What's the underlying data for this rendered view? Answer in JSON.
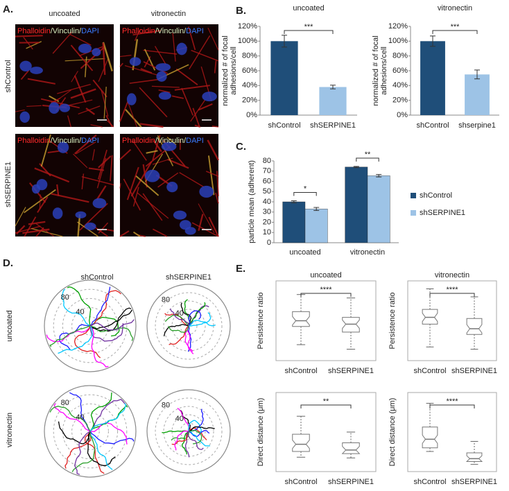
{
  "panels": {
    "a": "A.",
    "b": "B.",
    "c": "C.",
    "d": "D.",
    "e": "E."
  },
  "micrographs": {
    "columns": [
      "uncoated",
      "vitronectin"
    ],
    "rows": [
      "shControl",
      "shSERPINE1"
    ],
    "stain": [
      "Phalloidin",
      "/Vinculin/",
      "DAPI"
    ]
  },
  "rose": {
    "columns": [
      "shControl",
      "shSERPINE1"
    ],
    "rows": [
      "uncoated",
      "vitronectin"
    ],
    "rings": [
      "80",
      "40"
    ]
  },
  "chart_data": [
    {
      "type": "bar",
      "title": "uncoated",
      "y_label": [
        "normalized # of focal",
        "adhesions/cell"
      ],
      "categories": [
        "shControl",
        "shSERPINE1"
      ],
      "values": [
        100,
        38
      ],
      "errors": [
        8,
        2.5
      ],
      "colors": [
        "#1f4e79",
        "#9dc3e6"
      ],
      "ylim": [
        0,
        120
      ],
      "yticks": [
        {
          "value": 0,
          "label": "0%"
        },
        {
          "value": 20,
          "label": "20%"
        },
        {
          "value": 40,
          "label": "40%"
        },
        {
          "value": 60,
          "label": "60%"
        },
        {
          "value": 80,
          "label": "80%"
        },
        {
          "value": 100,
          "label": "100%"
        },
        {
          "value": 120,
          "label": "120%"
        }
      ],
      "annotation": "***"
    },
    {
      "type": "bar",
      "title": "vitronectin",
      "y_label": [
        "normalized # of focal",
        "adhesions/cell"
      ],
      "categories": [
        "shControl",
        "shserpine1"
      ],
      "values": [
        100,
        55
      ],
      "errors": [
        7,
        6
      ],
      "colors": [
        "#1f4e79",
        "#9dc3e6"
      ],
      "ylim": [
        0,
        120
      ],
      "yticks": [
        {
          "value": 0,
          "label": "0%"
        },
        {
          "value": 20,
          "label": "20%"
        },
        {
          "value": 40,
          "label": "40%"
        },
        {
          "value": 60,
          "label": "60%"
        },
        {
          "value": 80,
          "label": "80%"
        },
        {
          "value": 100,
          "label": "100%"
        },
        {
          "value": 120,
          "label": "120%"
        }
      ],
      "annotation": "***"
    },
    {
      "type": "grouped_bar",
      "y_label": "particle mean (adherent)",
      "categories": [
        "uncoated",
        "vitronectin"
      ],
      "series": [
        {
          "name": "shControl",
          "color": "#1f4e79",
          "values": [
            40,
            74
          ],
          "errors": [
            1,
            0.6
          ]
        },
        {
          "name": "shSERPINE1",
          "color": "#9dc3e6",
          "values": [
            33,
            65.5
          ],
          "errors": [
            1.5,
            1.2
          ]
        }
      ],
      "ylim": [
        0,
        80
      ],
      "yticks": [
        0,
        10,
        20,
        30,
        40,
        50,
        60,
        70,
        80
      ],
      "annotations": [
        "*",
        "**"
      ]
    },
    {
      "type": "box",
      "title": "uncoated",
      "y_label": "Persistence ratio",
      "categories": [
        "shControl",
        "shSERPINE1"
      ],
      "boxes": [
        {
          "whislo": 0.24,
          "q1": 0.4,
          "med": 0.45,
          "q3": 0.53,
          "whishi": 0.68
        },
        {
          "whislo": 0.2,
          "q1": 0.35,
          "med": 0.42,
          "q3": 0.48,
          "whishi": 0.65
        }
      ],
      "ylim": [
        0.1,
        0.8
      ],
      "annotation": "****"
    },
    {
      "type": "box",
      "title": "vitronectin",
      "y_label": "Persistence ratio",
      "categories": [
        "shControl",
        "shSERPINE1"
      ],
      "boxes": [
        {
          "whislo": 0.22,
          "q1": 0.42,
          "med": 0.48,
          "q3": 0.55,
          "whishi": 0.73
        },
        {
          "whislo": 0.2,
          "q1": 0.33,
          "med": 0.38,
          "q3": 0.47,
          "whishi": 0.66
        }
      ],
      "ylim": [
        0.1,
        0.8
      ],
      "annotation": "****"
    },
    {
      "type": "box",
      "y_label": "Direct distance (μm)",
      "categories": [
        "shControl",
        "shSERPINE1"
      ],
      "boxes": [
        {
          "whislo": 20,
          "q1": 28,
          "med": 38,
          "q3": 52,
          "whishi": 77
        },
        {
          "whislo": 19,
          "q1": 25,
          "med": 30,
          "q3": 40,
          "whishi": 55
        }
      ],
      "ylim": [
        0,
        110
      ],
      "annotation": "**"
    },
    {
      "type": "box",
      "y_label": "Direct distance (μm)",
      "categories": [
        "shControl",
        "shSERPINE1"
      ],
      "boxes": [
        {
          "whislo": 28,
          "q1": 33,
          "med": 45,
          "q3": 62,
          "whishi": 95
        },
        {
          "whislo": 10,
          "q1": 14,
          "med": 18,
          "q3": 26,
          "whishi": 42
        }
      ],
      "ylim": [
        0,
        110
      ],
      "annotation": "****"
    }
  ]
}
